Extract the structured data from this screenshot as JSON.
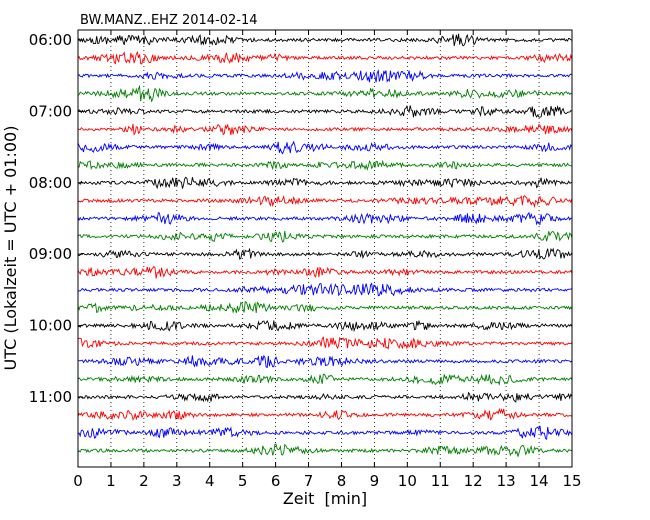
{
  "chart_data": {
    "type": "line",
    "title": "BW.MANZ..EHZ 2014-02-14",
    "xlabel": "Zeit  [min]",
    "ylabel": "UTC (Lokalzeit = UTC + 01:00)",
    "xlim": [
      0,
      15
    ],
    "x_ticks": [
      "0",
      "1",
      "2",
      "3",
      "4",
      "5",
      "6",
      "7",
      "8",
      "9",
      "10",
      "11",
      "12",
      "13",
      "14",
      "15"
    ],
    "y_ticks": [
      "06:00",
      "07:00",
      "08:00",
      "09:00",
      "10:00",
      "11:00"
    ],
    "grid": "vertical dotted lines at each minute",
    "trace_interval_minutes": 15,
    "traces_per_hour": 4,
    "trace_colors": [
      "#000000",
      "#ff0000",
      "#0000ff",
      "#008000"
    ],
    "traces": [
      {
        "start": "06:00"
      },
      {
        "start": "06:15"
      },
      {
        "start": "06:30"
      },
      {
        "start": "06:45"
      },
      {
        "start": "07:00"
      },
      {
        "start": "07:15"
      },
      {
        "start": "07:30"
      },
      {
        "start": "07:45"
      },
      {
        "start": "08:00"
      },
      {
        "start": "08:15"
      },
      {
        "start": "08:30"
      },
      {
        "start": "08:45"
      },
      {
        "start": "09:00"
      },
      {
        "start": "09:15"
      },
      {
        "start": "09:30"
      },
      {
        "start": "09:45"
      },
      {
        "start": "10:00"
      },
      {
        "start": "10:15"
      },
      {
        "start": "10:30"
      },
      {
        "start": "10:45"
      },
      {
        "start": "11:00"
      },
      {
        "start": "11:15"
      },
      {
        "start": "11:30"
      },
      {
        "start": "11:45"
      }
    ]
  }
}
